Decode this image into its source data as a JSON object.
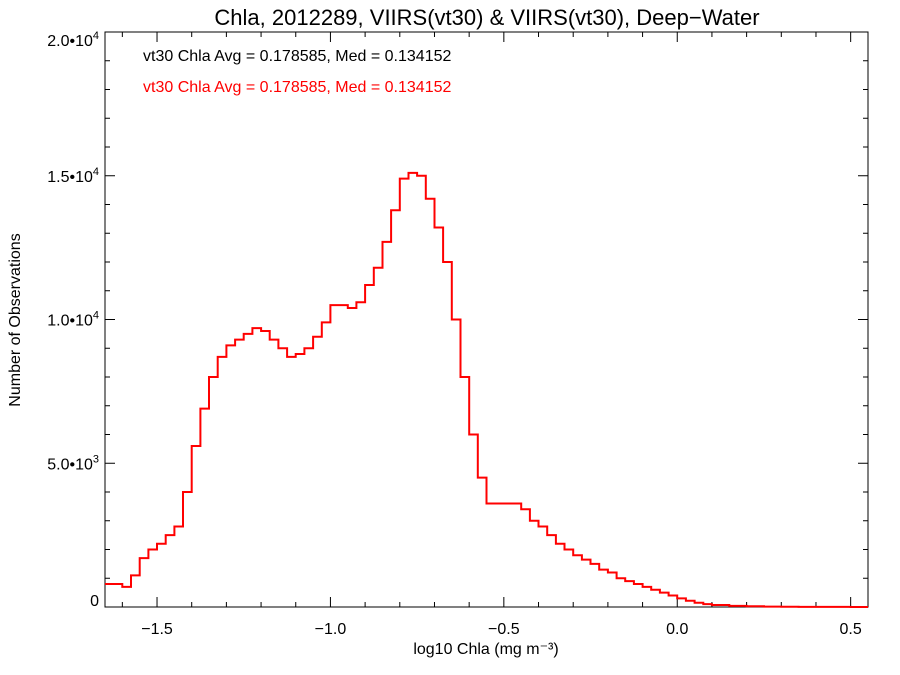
{
  "chart_data": {
    "type": "line",
    "title": "Chla, 2012289, VIIRS(vt30) & VIIRS(vt30), Deep−Water",
    "xlabel": "log10 Chla (mg m⁻³)",
    "ylabel": "Number of Observations",
    "xlim": [
      -1.65,
      0.55
    ],
    "ylim": [
      0,
      20000
    ],
    "x_ticks": [
      {
        "value": -1.5,
        "label": "−1.5"
      },
      {
        "value": -1.0,
        "label": "−1.0"
      },
      {
        "value": -0.5,
        "label": "−0.5"
      },
      {
        "value": 0.0,
        "label": "0.0"
      },
      {
        "value": 0.5,
        "label": "0.5"
      }
    ],
    "y_ticks": [
      {
        "value": 0,
        "mantissa": "0",
        "exponent": ""
      },
      {
        "value": 5000,
        "mantissa": "5.0•10",
        "exponent": "3"
      },
      {
        "value": 10000,
        "mantissa": "1.0•10",
        "exponent": "4"
      },
      {
        "value": 15000,
        "mantissa": "1.5•10",
        "exponent": "4"
      },
      {
        "value": 20000,
        "mantissa": "2.0•10",
        "exponent": "4"
      }
    ],
    "legend": [
      {
        "text": "vt30 Chla Avg = 0.178585, Med = 0.134152",
        "color": "#000000"
      },
      {
        "text": "vt30 Chla Avg = 0.178585, Med = 0.134152",
        "color": "#ff0000"
      }
    ],
    "series": [
      {
        "color": "#ff0000",
        "step": "histogram",
        "x": [
          -1.65,
          -1.6,
          -1.575,
          -1.55,
          -1.525,
          -1.5,
          -1.475,
          -1.45,
          -1.425,
          -1.4,
          -1.375,
          -1.35,
          -1.325,
          -1.3,
          -1.275,
          -1.25,
          -1.225,
          -1.2,
          -1.175,
          -1.15,
          -1.125,
          -1.1,
          -1.075,
          -1.05,
          -1.025,
          -1.0,
          -0.975,
          -0.95,
          -0.925,
          -0.9,
          -0.875,
          -0.85,
          -0.825,
          -0.8,
          -0.775,
          -0.75,
          -0.725,
          -0.7,
          -0.675,
          -0.65,
          -0.625,
          -0.6,
          -0.575,
          -0.55,
          -0.525,
          -0.5,
          -0.475,
          -0.45,
          -0.425,
          -0.4,
          -0.375,
          -0.35,
          -0.325,
          -0.3,
          -0.275,
          -0.25,
          -0.225,
          -0.2,
          -0.175,
          -0.15,
          -0.125,
          -0.1,
          -0.075,
          -0.05,
          -0.025,
          0.0,
          0.025,
          0.05,
          0.075,
          0.1,
          0.15,
          0.2,
          0.25,
          0.3,
          0.35,
          0.4,
          0.45,
          0.5,
          0.55
        ],
        "y": [
          800,
          700,
          1100,
          1700,
          2000,
          2200,
          2500,
          2800,
          4000,
          5600,
          6900,
          8000,
          8700,
          9100,
          9300,
          9500,
          9700,
          9600,
          9300,
          9000,
          8700,
          8800,
          9000,
          9400,
          9900,
          10500,
          10500,
          10400,
          10600,
          11200,
          11800,
          12700,
          13800,
          14900,
          15100,
          15000,
          14200,
          13200,
          12000,
          10000,
          8000,
          6000,
          4500,
          3600,
          3600,
          3600,
          3600,
          3400,
          3000,
          2800,
          2500,
          2200,
          2000,
          1800,
          1650,
          1500,
          1300,
          1200,
          1000,
          900,
          800,
          700,
          600,
          500,
          400,
          300,
          220,
          150,
          100,
          70,
          40,
          25,
          15,
          10,
          5,
          3,
          2,
          1,
          0
        ]
      }
    ]
  }
}
